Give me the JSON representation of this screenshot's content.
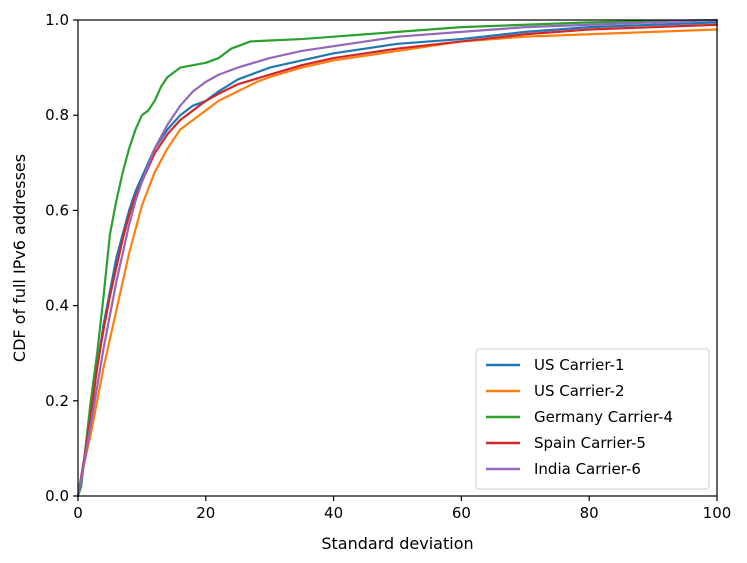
{
  "chart_data": {
    "type": "line",
    "title": "",
    "xlabel": "Standard deviation",
    "ylabel": "CDF of full IPv6 addresses",
    "xlim": [
      0,
      100
    ],
    "ylim": [
      0,
      1.0
    ],
    "grid": false,
    "legend_position": "bottom-right",
    "x_ticks": [
      {
        "value": 0,
        "label": "0"
      },
      {
        "value": 20,
        "label": "20"
      },
      {
        "value": 40,
        "label": "40"
      },
      {
        "value": 60,
        "label": "60"
      },
      {
        "value": 80,
        "label": "80"
      },
      {
        "value": 100,
        "label": "100"
      }
    ],
    "y_ticks": [
      {
        "value": 0.0,
        "label": "0.0"
      },
      {
        "value": 0.2,
        "label": "0.2"
      },
      {
        "value": 0.4,
        "label": "0.4"
      },
      {
        "value": 0.6,
        "label": "0.6"
      },
      {
        "value": 0.8,
        "label": "0.8"
      },
      {
        "value": 1.0,
        "label": "1.0"
      }
    ],
    "series": [
      {
        "name": "US Carrier-1",
        "color": "#1f77b4",
        "points": [
          [
            0,
            0
          ],
          [
            1,
            0.08
          ],
          [
            2,
            0.17
          ],
          [
            3,
            0.27
          ],
          [
            4,
            0.36
          ],
          [
            5,
            0.43
          ],
          [
            6,
            0.5
          ],
          [
            7,
            0.55
          ],
          [
            8,
            0.6
          ],
          [
            9,
            0.64
          ],
          [
            10,
            0.67
          ],
          [
            12,
            0.73
          ],
          [
            14,
            0.77
          ],
          [
            16,
            0.8
          ],
          [
            18,
            0.82
          ],
          [
            20,
            0.83
          ],
          [
            22,
            0.85
          ],
          [
            25,
            0.875
          ],
          [
            30,
            0.9
          ],
          [
            35,
            0.915
          ],
          [
            40,
            0.93
          ],
          [
            45,
            0.94
          ],
          [
            50,
            0.95
          ],
          [
            60,
            0.96
          ],
          [
            70,
            0.975
          ],
          [
            80,
            0.985
          ],
          [
            90,
            0.99
          ],
          [
            100,
            0.995
          ]
        ]
      },
      {
        "name": "US Carrier-2",
        "color": "#ff7f0e",
        "points": [
          [
            0,
            0
          ],
          [
            1,
            0.07
          ],
          [
            2,
            0.13
          ],
          [
            3,
            0.2
          ],
          [
            4,
            0.27
          ],
          [
            5,
            0.33
          ],
          [
            6,
            0.39
          ],
          [
            7,
            0.45
          ],
          [
            8,
            0.51
          ],
          [
            9,
            0.56
          ],
          [
            10,
            0.61
          ],
          [
            12,
            0.68
          ],
          [
            14,
            0.73
          ],
          [
            16,
            0.77
          ],
          [
            18,
            0.79
          ],
          [
            20,
            0.81
          ],
          [
            22,
            0.83
          ],
          [
            25,
            0.85
          ],
          [
            28,
            0.87
          ],
          [
            30,
            0.88
          ],
          [
            35,
            0.9
          ],
          [
            40,
            0.915
          ],
          [
            45,
            0.925
          ],
          [
            50,
            0.935
          ],
          [
            60,
            0.955
          ],
          [
            70,
            0.965
          ],
          [
            80,
            0.97
          ],
          [
            90,
            0.975
          ],
          [
            100,
            0.98
          ]
        ]
      },
      {
        "name": "Germany Carrier-4",
        "color": "#2ca02c",
        "points": [
          [
            0,
            0
          ],
          [
            0.5,
            0.02
          ],
          [
            1,
            0.08
          ],
          [
            2,
            0.2
          ],
          [
            3,
            0.3
          ],
          [
            4,
            0.42
          ],
          [
            5,
            0.55
          ],
          [
            6,
            0.62
          ],
          [
            7,
            0.68
          ],
          [
            8,
            0.73
          ],
          [
            9,
            0.77
          ],
          [
            10,
            0.8
          ],
          [
            11,
            0.81
          ],
          [
            12,
            0.83
          ],
          [
            13,
            0.86
          ],
          [
            14,
            0.88
          ],
          [
            15,
            0.89
          ],
          [
            16,
            0.9
          ],
          [
            18,
            0.905
          ],
          [
            20,
            0.91
          ],
          [
            22,
            0.92
          ],
          [
            24,
            0.94
          ],
          [
            27,
            0.955
          ],
          [
            30,
            0.957
          ],
          [
            35,
            0.96
          ],
          [
            40,
            0.965
          ],
          [
            45,
            0.97
          ],
          [
            50,
            0.975
          ],
          [
            60,
            0.985
          ],
          [
            80,
            0.995
          ],
          [
            100,
            1.0
          ]
        ]
      },
      {
        "name": "Spain Carrier-5",
        "color": "#d62728",
        "points": [
          [
            0,
            0
          ],
          [
            1,
            0.08
          ],
          [
            2,
            0.17
          ],
          [
            3,
            0.27
          ],
          [
            4,
            0.35
          ],
          [
            5,
            0.42
          ],
          [
            6,
            0.48
          ],
          [
            7,
            0.54
          ],
          [
            8,
            0.59
          ],
          [
            9,
            0.63
          ],
          [
            10,
            0.66
          ],
          [
            12,
            0.72
          ],
          [
            14,
            0.76
          ],
          [
            16,
            0.79
          ],
          [
            18,
            0.81
          ],
          [
            20,
            0.83
          ],
          [
            22,
            0.845
          ],
          [
            25,
            0.865
          ],
          [
            30,
            0.885
          ],
          [
            35,
            0.905
          ],
          [
            40,
            0.92
          ],
          [
            45,
            0.93
          ],
          [
            50,
            0.94
          ],
          [
            60,
            0.955
          ],
          [
            70,
            0.97
          ],
          [
            80,
            0.98
          ],
          [
            90,
            0.985
          ],
          [
            100,
            0.99
          ]
        ]
      },
      {
        "name": "India Carrier-6",
        "color": "#9467bd",
        "points": [
          [
            0,
            0
          ],
          [
            1,
            0.07
          ],
          [
            2,
            0.15
          ],
          [
            3,
            0.23
          ],
          [
            4,
            0.31
          ],
          [
            5,
            0.38
          ],
          [
            6,
            0.45
          ],
          [
            7,
            0.51
          ],
          [
            8,
            0.57
          ],
          [
            9,
            0.62
          ],
          [
            10,
            0.66
          ],
          [
            12,
            0.73
          ],
          [
            14,
            0.78
          ],
          [
            16,
            0.82
          ],
          [
            18,
            0.85
          ],
          [
            20,
            0.87
          ],
          [
            22,
            0.885
          ],
          [
            25,
            0.9
          ],
          [
            30,
            0.92
          ],
          [
            35,
            0.935
          ],
          [
            40,
            0.945
          ],
          [
            45,
            0.955
          ],
          [
            50,
            0.965
          ],
          [
            60,
            0.975
          ],
          [
            70,
            0.985
          ],
          [
            80,
            0.99
          ],
          [
            90,
            0.995
          ],
          [
            100,
            1.0
          ]
        ]
      }
    ]
  }
}
